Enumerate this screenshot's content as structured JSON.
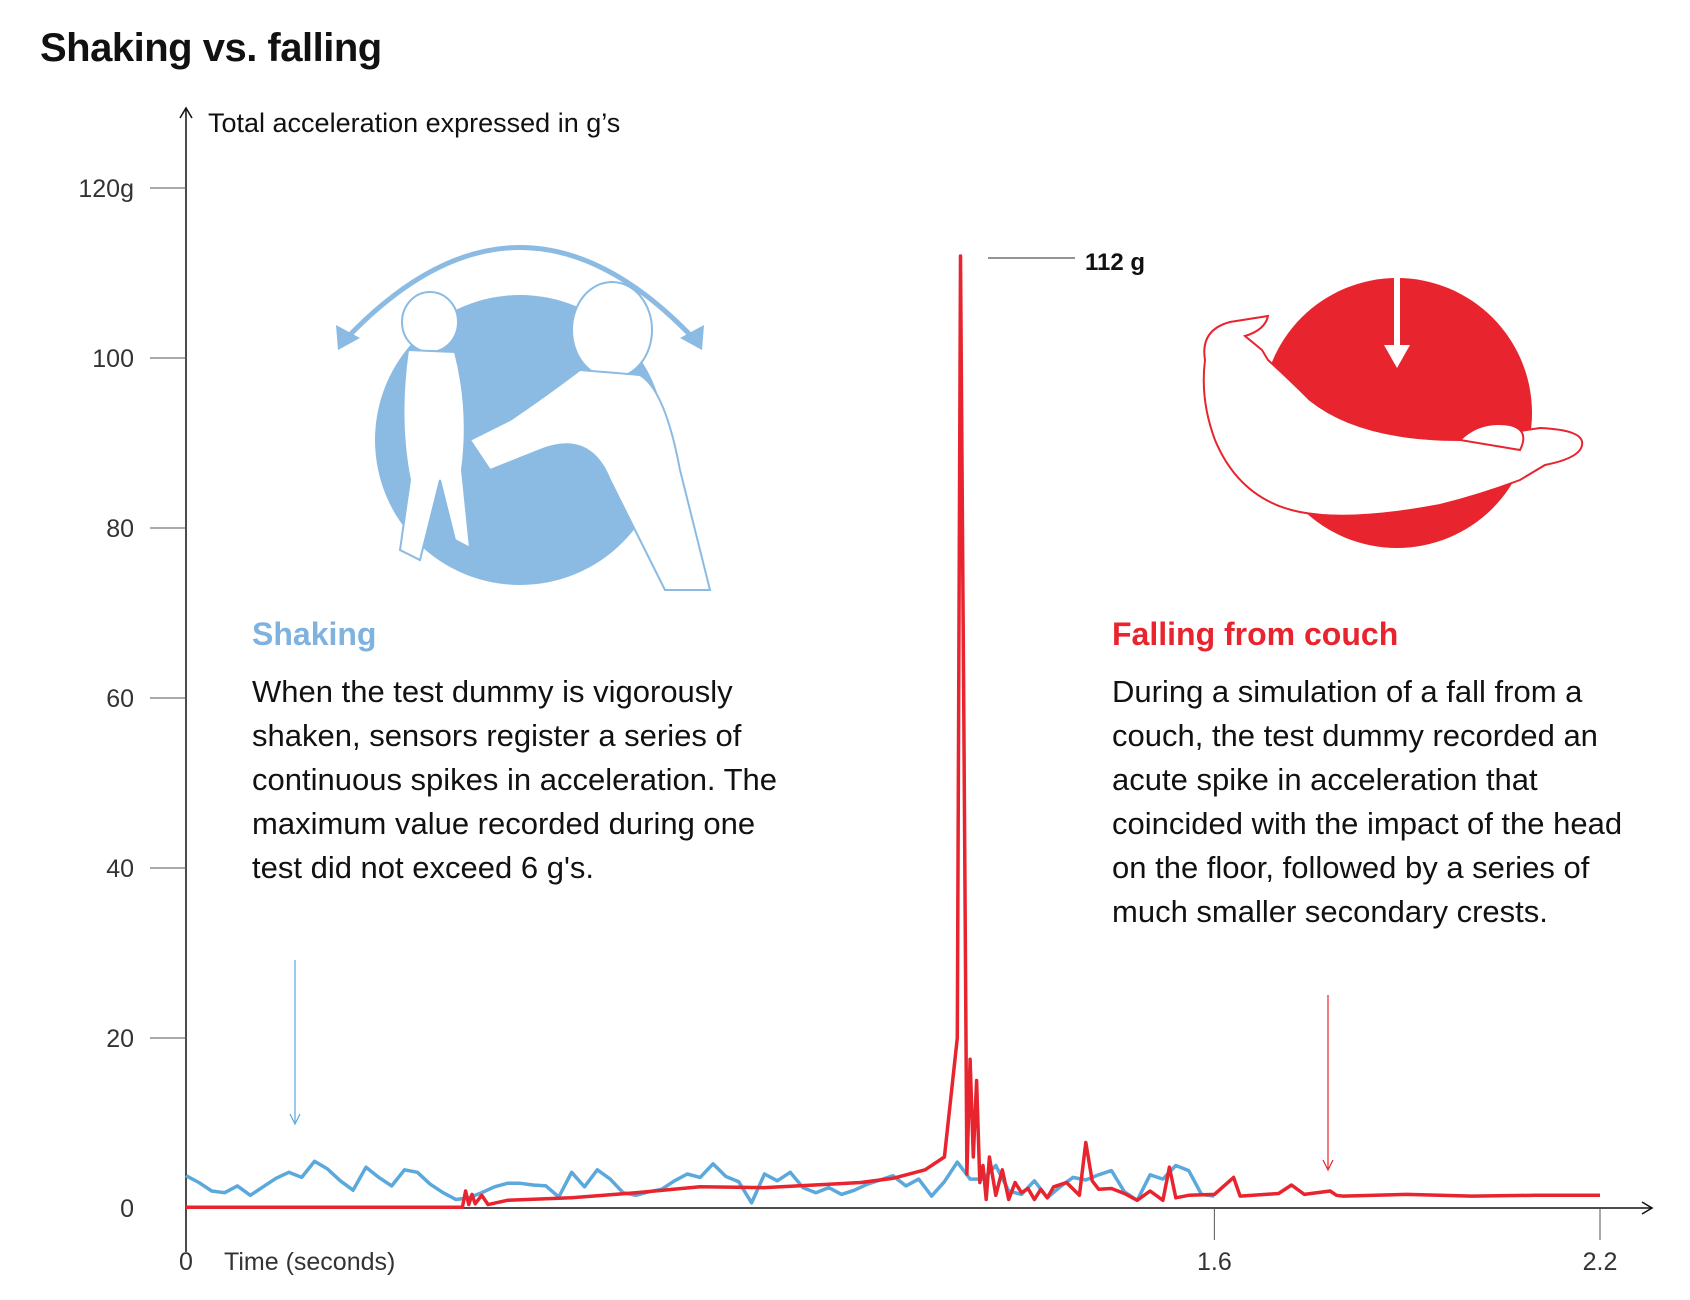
{
  "title": "Shaking vs. falling",
  "colors": {
    "shaking": "#5aa8dc",
    "falling": "#e8242e",
    "shaking_light": "#8bbbe2"
  },
  "chart_data": {
    "type": "line",
    "title": "Shaking vs. falling",
    "ylabel": "Total acceleration expressed in g’s",
    "xlabel": "Time (seconds)",
    "ylim": [
      0,
      120
    ],
    "xlim": [
      0,
      2.2
    ],
    "y_ticks": [
      "0",
      "20",
      "40",
      "60",
      "80",
      "100",
      "120g"
    ],
    "y_tick_values": [
      0,
      20,
      40,
      60,
      80,
      100,
      120
    ],
    "x_ticks": [
      "0",
      "1.6",
      "2.2"
    ],
    "x_tick_values": [
      0,
      1.6,
      2.2
    ],
    "peak_label": "112 g",
    "peak_value": 112,
    "series": [
      {
        "name": "Shaking",
        "x": [
          0,
          0.02,
          0.04,
          0.06,
          0.08,
          0.1,
          0.12,
          0.14,
          0.16,
          0.18,
          0.2,
          0.22,
          0.24,
          0.26,
          0.28,
          0.3,
          0.32,
          0.34,
          0.36,
          0.38,
          0.4,
          0.42,
          0.44,
          0.46,
          0.48,
          0.5,
          0.52,
          0.54,
          0.56,
          0.58,
          0.6,
          0.62,
          0.64,
          0.66,
          0.68,
          0.7,
          0.72,
          0.74,
          0.76,
          0.78,
          0.8,
          0.82,
          0.84,
          0.86,
          0.88,
          0.9,
          0.92,
          0.94,
          0.96,
          0.98,
          1.0,
          1.02,
          1.04,
          1.06,
          1.08,
          1.1,
          1.12,
          1.14,
          1.16,
          1.18,
          1.2,
          1.22,
          1.24,
          1.26,
          1.28,
          1.3,
          1.32,
          1.34,
          1.36,
          1.38,
          1.4,
          1.42,
          1.44,
          1.46,
          1.48,
          1.5,
          1.52,
          1.54,
          1.56,
          1.58,
          1.6
        ],
        "values": [
          3.8,
          3.0,
          2.0,
          1.8,
          2.6,
          1.5,
          2.5,
          3.5,
          4.2,
          3.6,
          5.5,
          4.6,
          3.2,
          2.1,
          4.8,
          3.6,
          2.6,
          4.5,
          4.2,
          2.8,
          1.8,
          1.0,
          1.2,
          1.8,
          2.5,
          2.9,
          2.9,
          2.7,
          2.6,
          1.3,
          4.2,
          2.5,
          4.5,
          3.4,
          1.8,
          1.5,
          1.9,
          2.2,
          3.2,
          4.0,
          3.6,
          5.2,
          3.7,
          3.1,
          0.6,
          4.0,
          3.2,
          4.2,
          2.4,
          1.8,
          2.4,
          1.6,
          2.1,
          2.8,
          3.3,
          3.8,
          2.6,
          3.4,
          1.4,
          3.1,
          5.4,
          3.4,
          3.4,
          5.0,
          2.0,
          1.6,
          3.2,
          1.2,
          2.5,
          3.6,
          3.3,
          3.9,
          4.4,
          1.9,
          0.9,
          3.9,
          3.4,
          5.0,
          4.4,
          1.6,
          1.4
        ]
      },
      {
        "name": "Falling from couch",
        "x": [
          0,
          0.43,
          0.435,
          0.44,
          0.445,
          0.45,
          0.46,
          0.47,
          0.5,
          0.6,
          0.7,
          0.8,
          0.9,
          1.0,
          1.05,
          1.1,
          1.15,
          1.18,
          1.2,
          1.205,
          1.21,
          1.215,
          1.22,
          1.225,
          1.23,
          1.235,
          1.24,
          1.245,
          1.25,
          1.26,
          1.27,
          1.28,
          1.29,
          1.3,
          1.31,
          1.32,
          1.33,
          1.34,
          1.35,
          1.37,
          1.39,
          1.4,
          1.41,
          1.42,
          1.44,
          1.46,
          1.48,
          1.5,
          1.52,
          1.53,
          1.54,
          1.56,
          1.6,
          1.63,
          1.64,
          1.66,
          1.7,
          1.72,
          1.74,
          1.78,
          1.79,
          1.8,
          1.9,
          2.0,
          2.1,
          2.2
        ],
        "values": [
          0.1,
          0.1,
          2.0,
          0.4,
          1.6,
          0.5,
          1.5,
          0.4,
          0.9,
          1.2,
          1.8,
          2.5,
          2.4,
          2.8,
          3.0,
          3.5,
          4.5,
          6.0,
          20.0,
          112.0,
          60.0,
          4.0,
          17.5,
          6.0,
          15.0,
          3.0,
          5.0,
          1.0,
          6.0,
          1.5,
          4.5,
          1.0,
          3.0,
          1.8,
          2.3,
          1.0,
          2.2,
          1.2,
          2.5,
          3.0,
          1.5,
          7.7,
          3.2,
          2.2,
          2.3,
          1.7,
          0.9,
          2.0,
          0.9,
          4.8,
          1.2,
          1.5,
          1.6,
          3.6,
          1.4,
          1.5,
          1.7,
          2.7,
          1.6,
          2.0,
          1.5,
          1.4,
          1.6,
          1.4,
          1.5,
          1.5
        ]
      }
    ]
  },
  "annotations": {
    "shaking": {
      "title": "Shaking",
      "body": "When the test dummy is vigorously shaken, sensors register a series of continuous spikes in acceleration. The maximum value recorded during one test did not exceed 6 g's."
    },
    "falling": {
      "title": "Falling from couch",
      "body": "During a simulation of a fall from a couch, the test dummy recorded an acute spike in acceleration that coincided with the impact of the head on the floor, followed by a series of much smaller secondary crests."
    }
  }
}
